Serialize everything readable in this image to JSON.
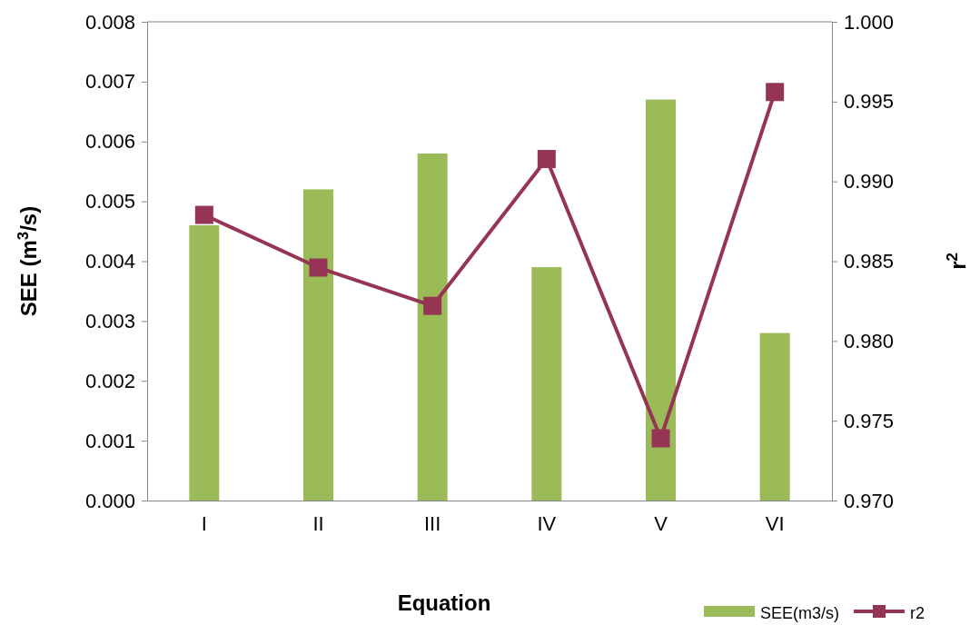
{
  "chart_data": {
    "type": "bar",
    "xlabel": "Equation",
    "ylabel": "SEE (m$^{3}$/s)",
    "y2label": "r$^{2}$",
    "categories": [
      "I",
      "II",
      "III",
      "IV",
      "V",
      "VI"
    ],
    "series": [
      {
        "name": "SEE(m3/s)",
        "color": "#9bbb59",
        "values": [
          0.0046,
          0.0052,
          0.0058,
          0.0039,
          0.0067,
          0.0028
        ]
      },
      {
        "name": "r2",
        "type": "line",
        "axis": "y2",
        "color": "#953553",
        "marker": "square",
        "values": [
          0.9879,
          0.9846,
          0.9822,
          0.9914,
          0.9739,
          0.9956
        ]
      }
    ],
    "ylim": [
      0,
      0.008
    ],
    "yticks": [
      {
        "value": 0,
        "label": "0.000"
      },
      {
        "value": 0.001,
        "label": "0.001"
      },
      {
        "value": 0.002,
        "label": "0.002"
      },
      {
        "value": 0.003,
        "label": "0.003"
      },
      {
        "value": 0.004,
        "label": "0.004"
      },
      {
        "value": 0.005,
        "label": "0.005"
      },
      {
        "value": 0.006,
        "label": "0.006"
      },
      {
        "value": 0.007,
        "label": "0.007"
      },
      {
        "value": 0.008,
        "label": "0.008"
      }
    ],
    "y2lim": [
      0.97,
      1.0
    ],
    "y2ticks": [
      {
        "value": 0.97,
        "label": "0.970"
      },
      {
        "value": 0.975,
        "label": "0.975"
      },
      {
        "value": 0.98,
        "label": "0.980"
      },
      {
        "value": 0.985,
        "label": "0.985"
      },
      {
        "value": 0.99,
        "label": "0.990"
      },
      {
        "value": 0.995,
        "label": "0.995"
      },
      {
        "value": 1.0,
        "label": "1.000"
      }
    ],
    "legend": "bottom right",
    "grid": false
  }
}
